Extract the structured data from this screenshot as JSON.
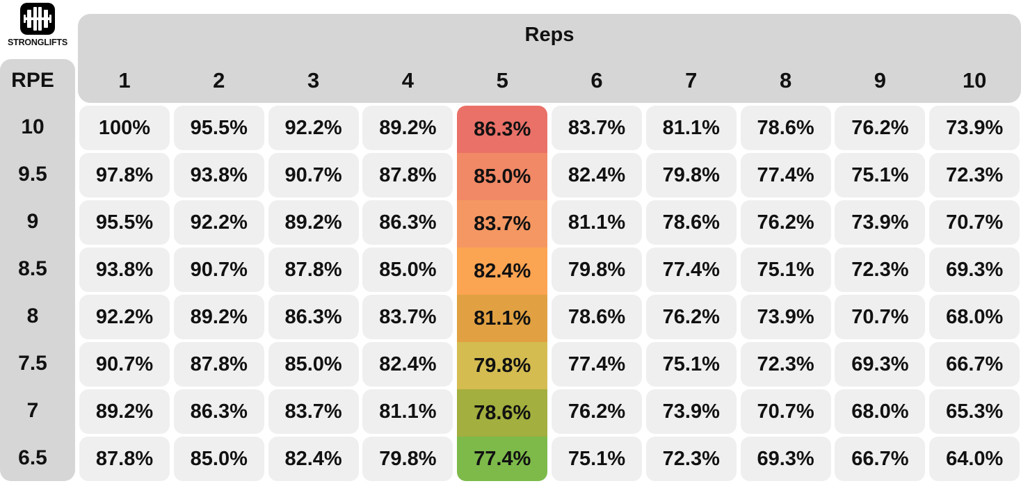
{
  "brand": {
    "logo_text": "STRONGLIFTS",
    "logo_icon": "barbell-icon"
  },
  "header": {
    "reps_label": "Reps",
    "rpe_label": "RPE",
    "rep_columns": [
      "1",
      "2",
      "3",
      "4",
      "5",
      "6",
      "7",
      "8",
      "9",
      "10"
    ]
  },
  "rows": [
    {
      "rpe": "10",
      "values": [
        "100%",
        "95.5%",
        "92.2%",
        "89.2%",
        "86.3%",
        "83.7%",
        "81.1%",
        "78.6%",
        "76.2%",
        "73.9%"
      ]
    },
    {
      "rpe": "9.5",
      "values": [
        "97.8%",
        "93.8%",
        "90.7%",
        "87.8%",
        "85.0%",
        "82.4%",
        "79.8%",
        "77.4%",
        "75.1%",
        "72.3%"
      ]
    },
    {
      "rpe": "9",
      "values": [
        "95.5%",
        "92.2%",
        "89.2%",
        "86.3%",
        "83.7%",
        "81.1%",
        "78.6%",
        "76.2%",
        "73.9%",
        "70.7%"
      ]
    },
    {
      "rpe": "8.5",
      "values": [
        "93.8%",
        "90.7%",
        "87.8%",
        "85.0%",
        "82.4%",
        "79.8%",
        "77.4%",
        "75.1%",
        "72.3%",
        "69.3%"
      ]
    },
    {
      "rpe": "8",
      "values": [
        "92.2%",
        "89.2%",
        "86.3%",
        "83.7%",
        "81.1%",
        "78.6%",
        "76.2%",
        "73.9%",
        "70.7%",
        "68.0%"
      ]
    },
    {
      "rpe": "7.5",
      "values": [
        "90.7%",
        "87.8%",
        "85.0%",
        "82.4%",
        "79.8%",
        "77.4%",
        "75.1%",
        "72.3%",
        "69.3%",
        "66.7%"
      ]
    },
    {
      "rpe": "7",
      "values": [
        "89.2%",
        "86.3%",
        "83.7%",
        "81.1%",
        "78.6%",
        "76.2%",
        "73.9%",
        "70.7%",
        "68.0%",
        "65.3%"
      ]
    },
    {
      "rpe": "6.5",
      "values": [
        "87.8%",
        "85.0%",
        "82.4%",
        "79.8%",
        "77.4%",
        "75.1%",
        "72.3%",
        "69.3%",
        "66.7%",
        "64.0%"
      ]
    }
  ],
  "highlight": {
    "column_index": 4,
    "colors": [
      "#e97168",
      "#f18866",
      "#f59762",
      "#fba452",
      "#e1a142",
      "#d4bc51",
      "#a3af3e",
      "#7dba4a"
    ]
  },
  "colors": {
    "panel": "#d6d6d6",
    "cell": "#efefef",
    "text": "#111111"
  }
}
